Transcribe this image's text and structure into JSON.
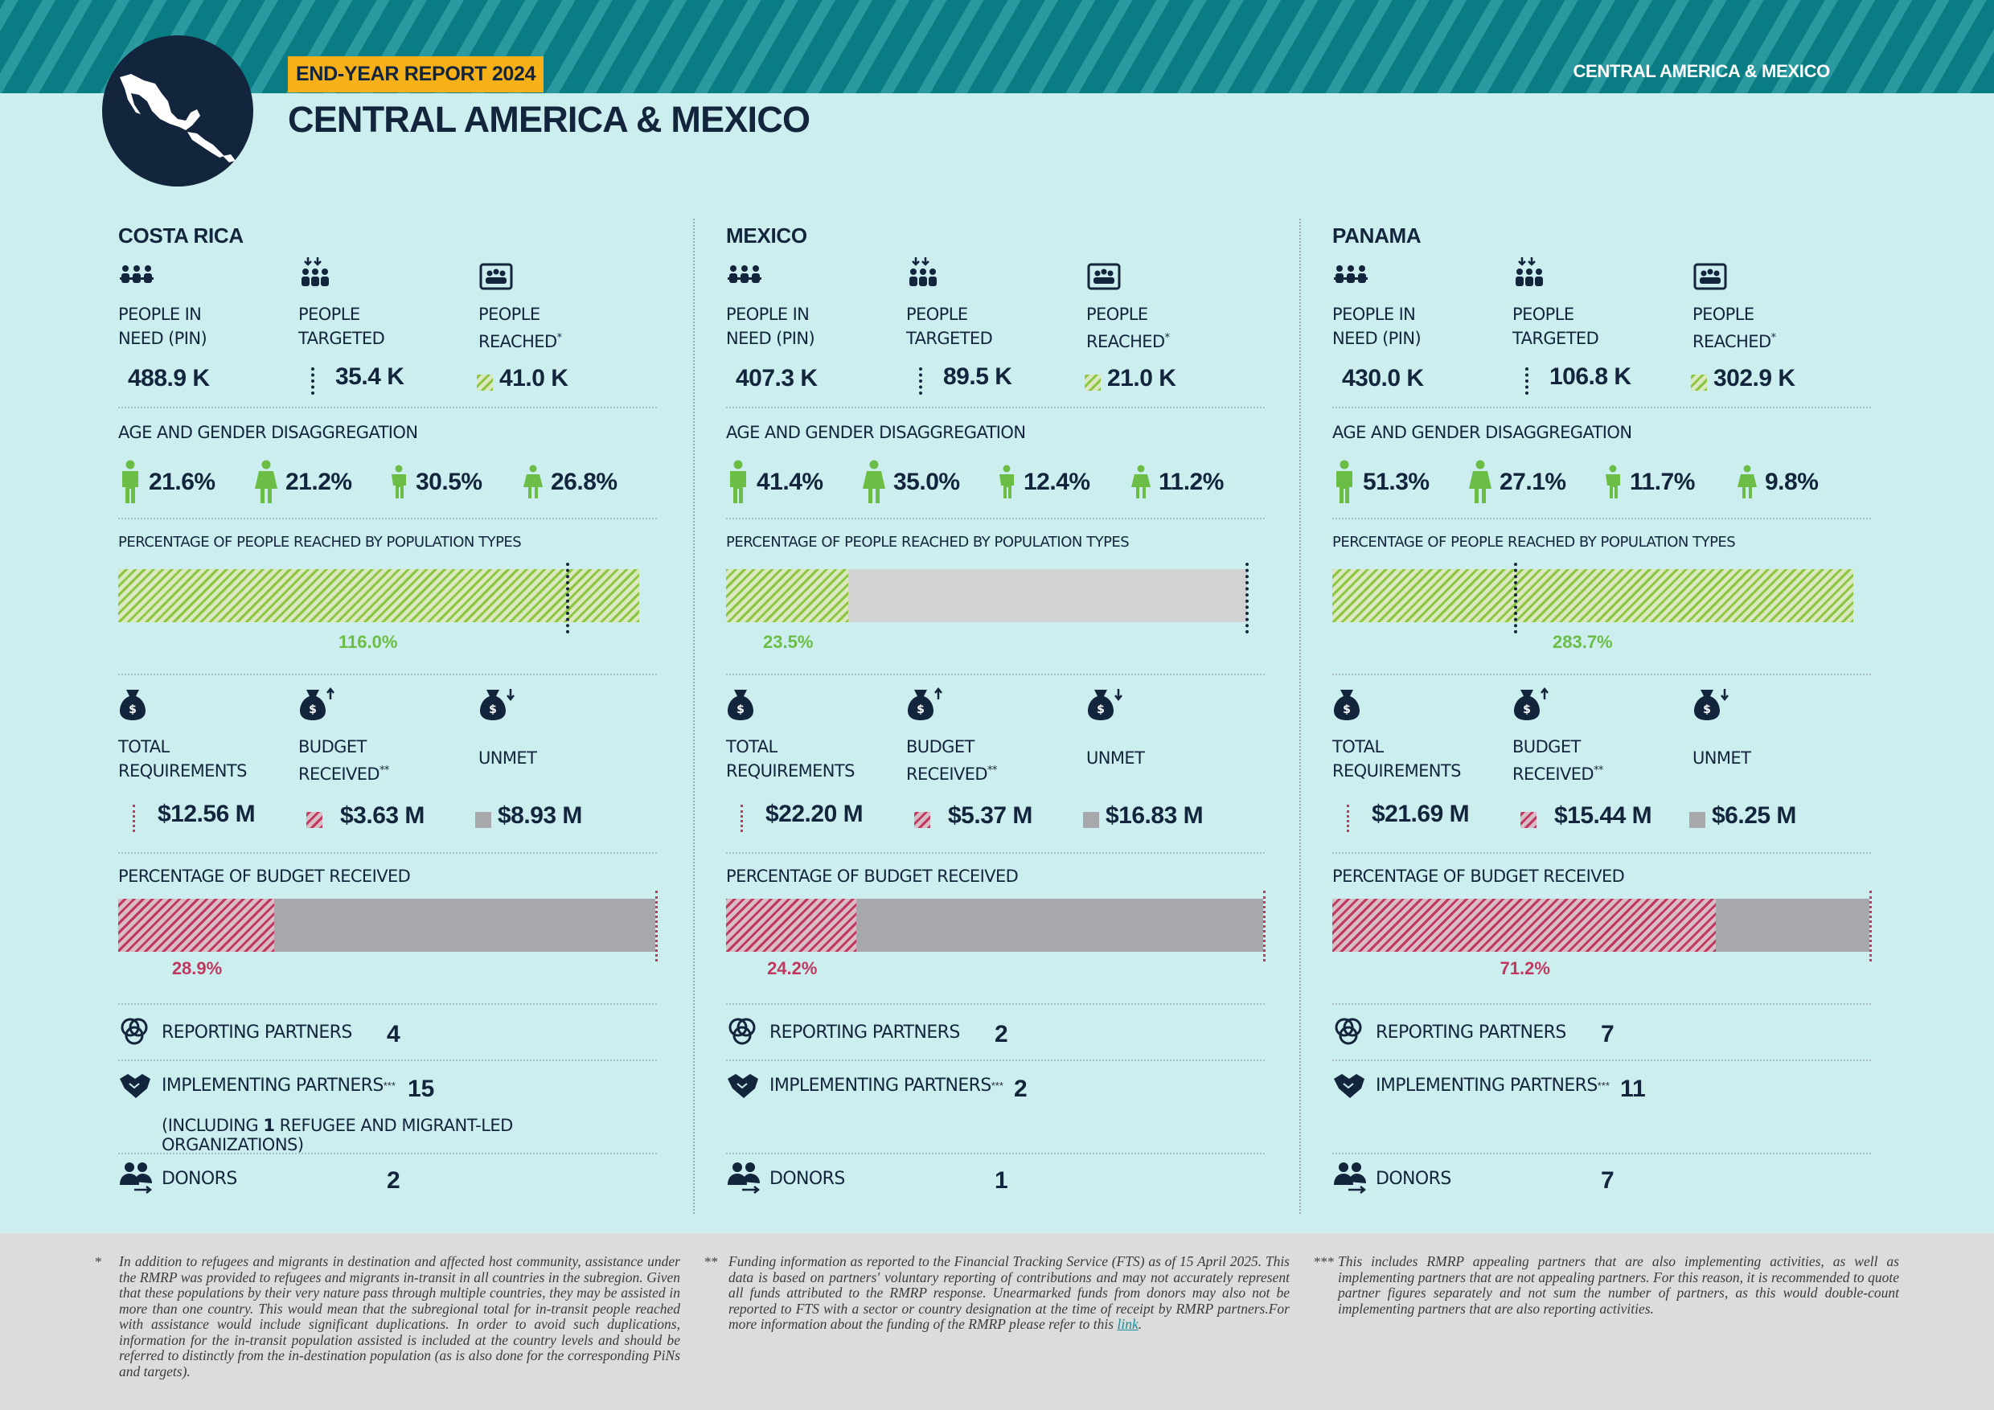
{
  "header": {
    "tag": "END-YEAR REPORT 2024",
    "title": "CENTRAL AMERICA & MEXICO",
    "banner_right": "CENTRAL AMERICA & MEXICO",
    "icon": "central-america-map-icon"
  },
  "labels": {
    "pin_1": "PEOPLE IN",
    "pin_2": "NEED (PIN)",
    "targeted_1": "PEOPLE",
    "targeted_2": "TARGETED",
    "reached_1": "PEOPLE",
    "reached_2": "REACHED",
    "reached_mark": "*",
    "age_title": "AGE AND GENDER DISAGGREGATION",
    "pop_title": "PERCENTAGE OF PEOPLE REACHED BY POPULATION TYPES",
    "total_1": "TOTAL",
    "total_2": "REQUIREMENTS",
    "budget_1": "BUDGET",
    "budget_2": "RECEIVED",
    "budget_mark": "**",
    "unmet": "UNMET",
    "budget_pct_title": "PERCENTAGE OF BUDGET RECEIVED",
    "reporting": "REPORTING PARTNERS",
    "implementing": "IMPLEMENTING PARTNERS",
    "implementing_mark": "***",
    "donors": "DONORS"
  },
  "countries": [
    {
      "name": "COSTA RICA",
      "pin": "488.9 K",
      "targeted": "35.4 K",
      "reached": "41.0 K",
      "age": [
        "21.6%",
        "21.2%",
        "30.5%",
        "26.8%"
      ],
      "pop_pct": "116.0%",
      "pop_fraction": 1.16,
      "total": "$12.56 M",
      "received": "$3.63 M",
      "unmet": "$8.93 M",
      "budget_pct": "28.9%",
      "budget_fraction": 0.289,
      "reporting": "4",
      "implementing": "15",
      "note_pre": "(INCLUDING ",
      "note_num": "1",
      "note_post": " REFUGEE AND MIGRANT-LED ORGANIZATIONS)",
      "donors": "2"
    },
    {
      "name": "MEXICO",
      "pin": "407.3 K",
      "targeted": "89.5 K",
      "reached": "21.0 K",
      "age": [
        "41.4%",
        "35.0%",
        "12.4%",
        "11.2%"
      ],
      "pop_pct": "23.5%",
      "pop_fraction": 0.235,
      "total": "$22.20 M",
      "received": "$5.37 M",
      "unmet": "$16.83 M",
      "budget_pct": "24.2%",
      "budget_fraction": 0.242,
      "reporting": "2",
      "implementing": "2",
      "donors": "1"
    },
    {
      "name": "PANAMA",
      "pin": "430.0 K",
      "targeted": "106.8 K",
      "reached": "302.9 K",
      "age": [
        "51.3%",
        "27.1%",
        "11.7%",
        "9.8%"
      ],
      "pop_pct": "283.7%",
      "pop_fraction": 2.837,
      "total": "$21.69 M",
      "received": "$15.44 M",
      "unmet": "$6.25 M",
      "budget_pct": "71.2%",
      "budget_fraction": 0.712,
      "reporting": "7",
      "implementing": "11",
      "donors": "7"
    }
  ],
  "footnotes": {
    "m1": "*",
    "f1": "In addition to refugees and migrants in destination and affected host community, assistance under the RMRP was provided to refugees and migrants in-transit in all countries in the subregion. Given that these populations by their very nature pass through multiple countries, they may be assisted in more than one country. This would mean that the subregional total for in-transit people reached with assistance would include significant duplications. In order to avoid such duplications, information for the in-transit population assisted is included at the country levels and should be referred to distinctly from the in-destination population (as is also done for the corresponding PiNs and targets).",
    "m2": "**",
    "f2": "Funding information as reported to the Financial Tracking Service (FTS) as of 15 April 2025. This data is based on partners' voluntary reporting of contributions and may not accurately represent all funds attributed to the RMRP response. Unearmarked funds from donors may also not be reported to FTS with a sector or country designation at the time of receipt by RMRP partners.For more information about the funding of the RMRP please refer to this",
    "f2_link": "link",
    "f2_end": ".",
    "m3": "***",
    "f3": "This includes RMRP appealing partners that are also implementing activities, as well as implementing partners that are not appealing partners. For this reason, it is recommended to quote partner figures separately and not sum the number of partners, as this would double-count implementing partners that are also reporting activities."
  },
  "colors": {
    "teal": "#0a7c84",
    "navy": "#13253c",
    "green": "#6cbd45",
    "red": "#c0385d",
    "grey": "#a7a8ab",
    "bg": "#cdeeee"
  },
  "icons": [
    "people-in-need-icon",
    "people-targeted-icon",
    "people-reached-icon",
    "man-icon",
    "woman-icon",
    "boy-icon",
    "girl-icon",
    "money-bag-icon",
    "money-bag-up-icon",
    "money-bag-down-icon",
    "reporting-partners-icon",
    "handshake-icon",
    "donors-icon"
  ]
}
